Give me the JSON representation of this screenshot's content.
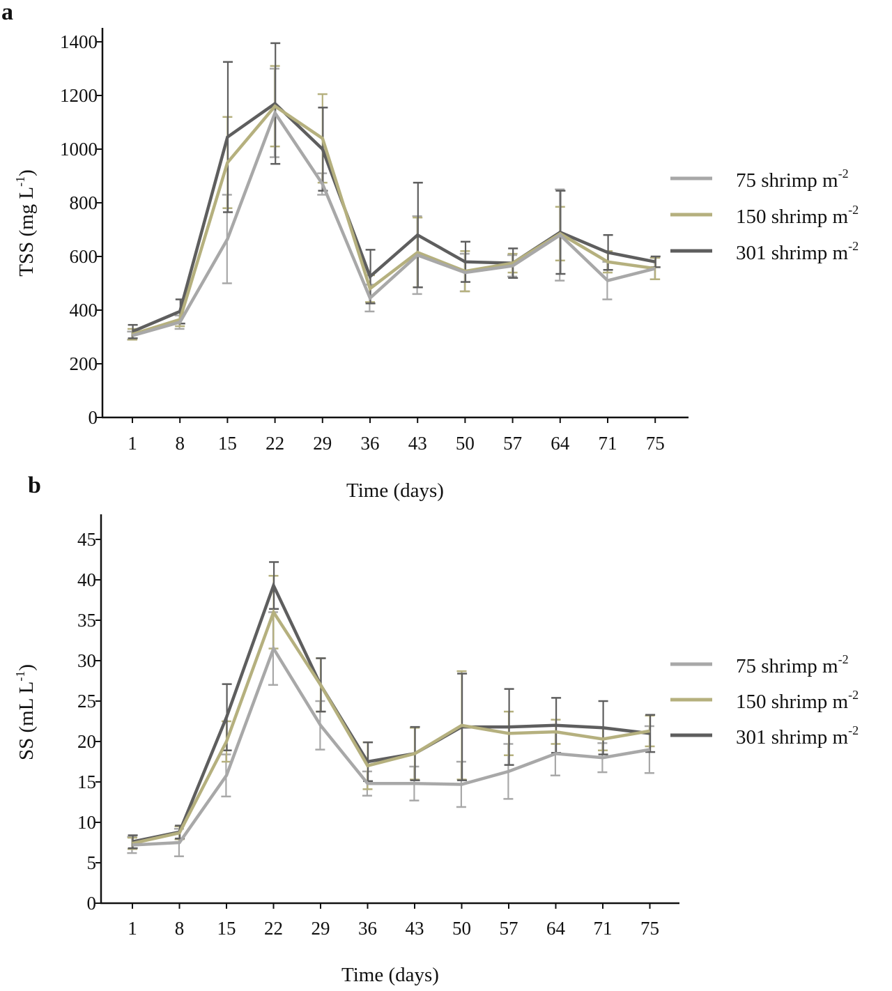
{
  "chart_data": [
    {
      "panel": "a",
      "type": "line",
      "title": "",
      "xlabel": "Time (days)",
      "ylabel": "TSS (mg L-1)",
      "ylabel_parts": {
        "main": "TSS (mg L",
        "sup": "-1",
        "close": ")"
      },
      "x": [
        "1",
        "8",
        "15",
        "22",
        "29",
        "36",
        "43",
        "50",
        "57",
        "64",
        "71",
        "75"
      ],
      "ylim": [
        0,
        1400
      ],
      "yticks": [
        0,
        200,
        400,
        600,
        800,
        1000,
        1200,
        1400
      ],
      "grid": false,
      "legend_position": "right",
      "error_bars": true,
      "series": [
        {
          "name": "75 shrimp m-2",
          "label_main": "75 shrimp m",
          "label_sup": "-2",
          "color": "#a8a8a8",
          "values": [
            305,
            355,
            665,
            1135,
            870,
            445,
            605,
            540,
            565,
            680,
            510,
            555
          ],
          "errors": [
            15,
            25,
            165,
            165,
            40,
            50,
            145,
            70,
            40,
            170,
            70,
            40
          ]
        },
        {
          "name": "150 shrimp m-2",
          "label_main": "150 shrimp m",
          "label_sup": "-2",
          "color": "#b5b07e",
          "values": [
            310,
            365,
            950,
            1160,
            1040,
            480,
            615,
            545,
            575,
            685,
            580,
            555
          ],
          "errors": [
            20,
            25,
            170,
            150,
            165,
            50,
            130,
            75,
            35,
            100,
            40,
            40
          ]
        },
        {
          "name": "301 shrimp m-2",
          "label_main": "301 shrimp m",
          "label_sup": "-2",
          "color": "#5e5e5e",
          "values": [
            320,
            395,
            1045,
            1170,
            1000,
            525,
            680,
            580,
            575,
            690,
            615,
            580
          ],
          "errors": [
            25,
            45,
            280,
            225,
            155,
            100,
            195,
            75,
            55,
            155,
            65,
            20
          ]
        }
      ]
    },
    {
      "panel": "b",
      "type": "line",
      "title": "",
      "xlabel": "Time (days)",
      "ylabel": "SS (mL L-1)",
      "ylabel_parts": {
        "main": "SS (mL L",
        "sup": "-1",
        "close": ")"
      },
      "x": [
        "1",
        "8",
        "15",
        "22",
        "29",
        "36",
        "43",
        "50",
        "57",
        "64",
        "71",
        "75"
      ],
      "ylim": [
        0,
        47
      ],
      "yticks": [
        0,
        5,
        10,
        15,
        20,
        25,
        30,
        35,
        40,
        45
      ],
      "grid": false,
      "legend_position": "right",
      "error_bars": true,
      "series": [
        {
          "name": "75 shrimp m-2",
          "label_main": "75 shrimp m",
          "label_sup": "-2",
          "color": "#a8a8a8",
          "values": [
            7.2,
            7.5,
            15.8,
            31.5,
            22.0,
            14.8,
            14.8,
            14.7,
            16.3,
            18.5,
            18.0,
            19.0
          ],
          "errors": [
            1.0,
            1.7,
            2.6,
            4.5,
            3.0,
            1.5,
            2.1,
            2.8,
            3.4,
            2.7,
            1.8,
            2.9
          ]
        },
        {
          "name": "150 shrimp m-2",
          "label_main": "150 shrimp m",
          "label_sup": "-2",
          "color": "#b5b07e",
          "values": [
            7.4,
            8.7,
            20.0,
            36.0,
            27.0,
            17.0,
            18.5,
            22.0,
            21.0,
            21.2,
            20.3,
            21.3
          ],
          "errors": [
            0.7,
            0.8,
            2.5,
            4.5,
            3.3,
            2.9,
            3.2,
            6.7,
            2.7,
            1.5,
            1.4,
            1.9
          ]
        },
        {
          "name": "301 shrimp m-2",
          "label_main": "301 shrimp m",
          "label_sup": "-2",
          "color": "#5e5e5e",
          "values": [
            7.6,
            8.8,
            23.0,
            39.3,
            27.0,
            17.5,
            18.5,
            21.8,
            21.8,
            22.0,
            21.7,
            21.0
          ],
          "errors": [
            0.8,
            0.8,
            4.1,
            2.9,
            3.3,
            2.4,
            3.3,
            6.6,
            4.7,
            3.4,
            3.3,
            2.3
          ]
        }
      ]
    }
  ]
}
